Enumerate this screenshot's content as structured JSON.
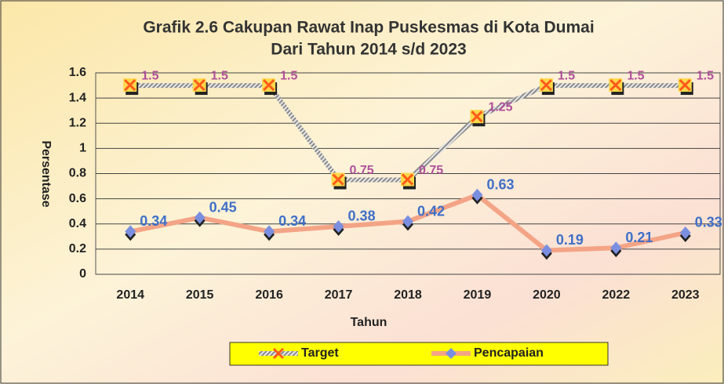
{
  "chart_data": {
    "type": "line",
    "title": "Grafik 2.6 Cakupan Rawat Inap Puskesmas di Kota Dumai",
    "subtitle": "Dari Tahun 2014 s/d 2023",
    "x_label": "Tahun",
    "y_label": "Persentase",
    "categories": [
      "2014",
      "2015",
      "2016",
      "2017",
      "2018",
      "2019",
      "2020",
      "2022",
      "2023"
    ],
    "series": [
      {
        "name": "Target",
        "color": "#a0a0a0",
        "label_color": "#b0509a",
        "values": [
          1.5,
          1.5,
          1.5,
          0.75,
          0.75,
          1.25,
          1.5,
          1.5,
          1.5
        ]
      },
      {
        "name": "Pencapaian",
        "color": "#f4a486",
        "label_color": "#3f6fc8",
        "values": [
          0.34,
          0.45,
          0.34,
          0.38,
          0.42,
          0.63,
          0.19,
          0.21,
          0.33
        ]
      }
    ],
    "ylim": [
      0,
      1.6
    ],
    "yticks": [
      0,
      0.2,
      0.4,
      0.6,
      0.8,
      1,
      1.2,
      1.4,
      1.6
    ],
    "grid": true,
    "legend": "bottom"
  }
}
